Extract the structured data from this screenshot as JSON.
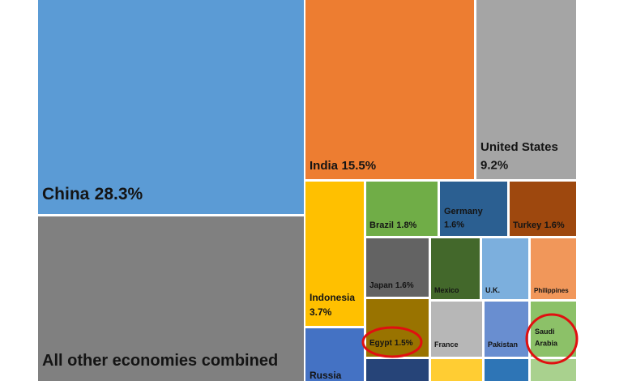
{
  "chart_data": {
    "type": "treemap",
    "items": [
      {
        "name": "China",
        "value": 28.3,
        "value_label": "28.3%",
        "color": "#5b9bd5"
      },
      {
        "name": "All other economies combined",
        "value": 27,
        "color": "#808080"
      },
      {
        "name": "India",
        "value": 15.5,
        "value_label": "15.5%",
        "color": "#ed7d31"
      },
      {
        "name": "United States",
        "value": 9.2,
        "value_label": "9.2%",
        "color": "#a5a5a5"
      },
      {
        "name": "Indonesia",
        "value": 3.7,
        "value_label": "3.7%",
        "color": "#ffc000"
      },
      {
        "name": "Brazil",
        "value": 1.8,
        "value_label": "1.8%",
        "color": "#70ad47"
      },
      {
        "name": "Germany",
        "value": 1.6,
        "value_label": "1.6%",
        "color": "#2b5f91"
      },
      {
        "name": "Turkey",
        "value": 1.6,
        "value_label": "1.6%",
        "color": "#9e480e"
      },
      {
        "name": "Japan",
        "value": 1.6,
        "value_label": "1.6%",
        "color": "#636363"
      },
      {
        "name": "Mexico",
        "value": 1.4,
        "color": "#43682b"
      },
      {
        "name": "U.K.",
        "value": 1.3,
        "color": "#7cafdd"
      },
      {
        "name": "Philippines",
        "value": 1.2,
        "color": "#f1975a"
      },
      {
        "name": "Egypt",
        "value": 1.5,
        "value_label": "1.5%",
        "color": "#997300"
      },
      {
        "name": "France",
        "value": 1.2,
        "color": "#b7b7b7"
      },
      {
        "name": "Pakistan",
        "value": 1.1,
        "color": "#698ed0"
      },
      {
        "name": "Saudi Arabia",
        "value": 1.1,
        "color": "#8cc168"
      },
      {
        "name": "Russia",
        "value": 1.5,
        "color": "#4472c4"
      },
      {
        "name": null,
        "value": 1.0,
        "color": "#264478"
      },
      {
        "name": null,
        "value": 1.0,
        "color": "#ffcd33"
      },
      {
        "name": null,
        "value": 1.0,
        "color": "#2e75b6"
      },
      {
        "name": null,
        "value": 1.0,
        "color": "#a9d18e"
      }
    ]
  }
}
